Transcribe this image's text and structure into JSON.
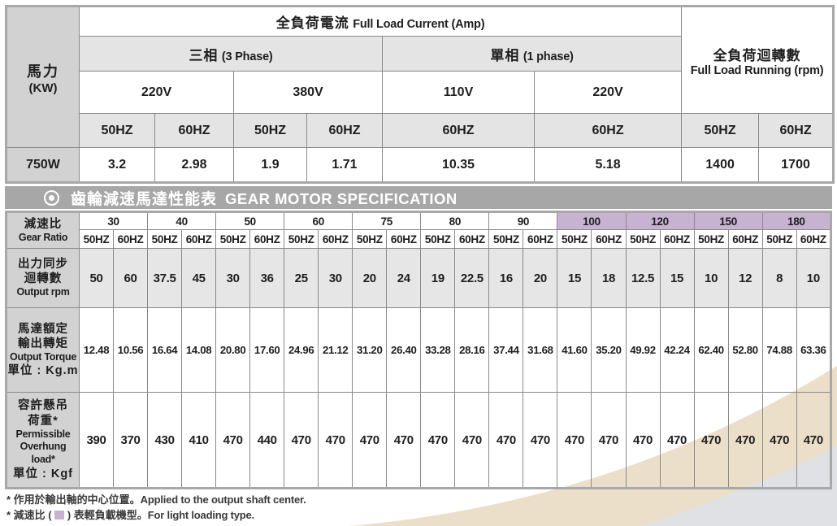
{
  "top_table": {
    "hp_header": {
      "zh": "馬力",
      "en": "(KW)"
    },
    "current_header": {
      "zh": "全負荷電流",
      "en": "Full Load Current (Amp)"
    },
    "rpm_header": {
      "zh": "全負荷迴轉數",
      "en": "Full Load Running (rpm)"
    },
    "phase3": {
      "zh": "三相",
      "en": "(3 Phase)"
    },
    "phase1": {
      "zh": "單相",
      "en": "(1 phase)"
    },
    "voltages": [
      "220V",
      "380V",
      "110V",
      "220V"
    ],
    "hz": [
      "50HZ",
      "60HZ",
      "50HZ",
      "60HZ",
      "60HZ",
      "60HZ",
      "50HZ",
      "60HZ"
    ],
    "data_row": {
      "label": "750W",
      "values": [
        "3.2",
        "2.98",
        "1.9",
        "1.71",
        "10.35",
        "5.18",
        "1400",
        "1700"
      ]
    }
  },
  "section_header": {
    "zh": "齒輪減速馬達性能表",
    "en": "GEAR MOTOR SPECIFICATION"
  },
  "spec_table": {
    "ratio_label": {
      "zh": "減速比",
      "en": "Gear Ratio"
    },
    "ratios": [
      {
        "value": "30",
        "light": false
      },
      {
        "value": "40",
        "light": false
      },
      {
        "value": "50",
        "light": false
      },
      {
        "value": "60",
        "light": false
      },
      {
        "value": "75",
        "light": false
      },
      {
        "value": "80",
        "light": false
      },
      {
        "value": "90",
        "light": false
      },
      {
        "value": "100",
        "light": true
      },
      {
        "value": "120",
        "light": true
      },
      {
        "value": "150",
        "light": true
      },
      {
        "value": "180",
        "light": true
      }
    ],
    "hz_pair": [
      "50HZ",
      "60HZ"
    ],
    "rows": [
      {
        "label_lines": [
          "出力同步",
          "迴轉數",
          "Output rpm"
        ],
        "shaded": true,
        "values": [
          "50",
          "60",
          "37.5",
          "45",
          "30",
          "36",
          "25",
          "30",
          "20",
          "24",
          "19",
          "22.5",
          "16",
          "20",
          "15",
          "18",
          "12.5",
          "15",
          "10",
          "12",
          "8",
          "10"
        ]
      },
      {
        "label_lines": [
          "馬達額定",
          "輸出轉矩",
          "Output Torque",
          "單位 : Kg.m"
        ],
        "shaded": false,
        "values": [
          "12.48",
          "10.56",
          "16.64",
          "14.08",
          "20.80",
          "17.60",
          "24.96",
          "21.12",
          "31.20",
          "26.40",
          "33.28",
          "28.16",
          "37.44",
          "31.68",
          "41.60",
          "35.20",
          "49.92",
          "42.24",
          "62.40",
          "52.80",
          "74.88",
          "63.36"
        ]
      },
      {
        "label_lines": [
          "容許懸吊",
          "荷重*",
          "Permissible",
          "Overhung load*",
          "單位 : Kgf"
        ],
        "shaded": false,
        "values": [
          "390",
          "370",
          "430",
          "410",
          "470",
          "440",
          "470",
          "470",
          "470",
          "470",
          "470",
          "470",
          "470",
          "470",
          "470",
          "470",
          "470",
          "470",
          "470",
          "470",
          "470",
          "470"
        ]
      }
    ]
  },
  "footnotes": [
    {
      "zh": "* 作用於輸出軸的中心位置。",
      "en": "Applied to the output shaft center."
    },
    {
      "zh_pre": "* 減速比 ( ",
      "zh_post": " ) 表輕負載機型。",
      "en": "For light loading type."
    }
  ],
  "colors": {
    "light_ratio_bg": "#c8b2d2",
    "band_bg": "#a7a7a7",
    "header_gray": "#e4e4e4",
    "label_gray": "#d2d2d2",
    "beige_swoosh": "#ecdfca",
    "gray_swoosh": "#dfe1e4"
  }
}
